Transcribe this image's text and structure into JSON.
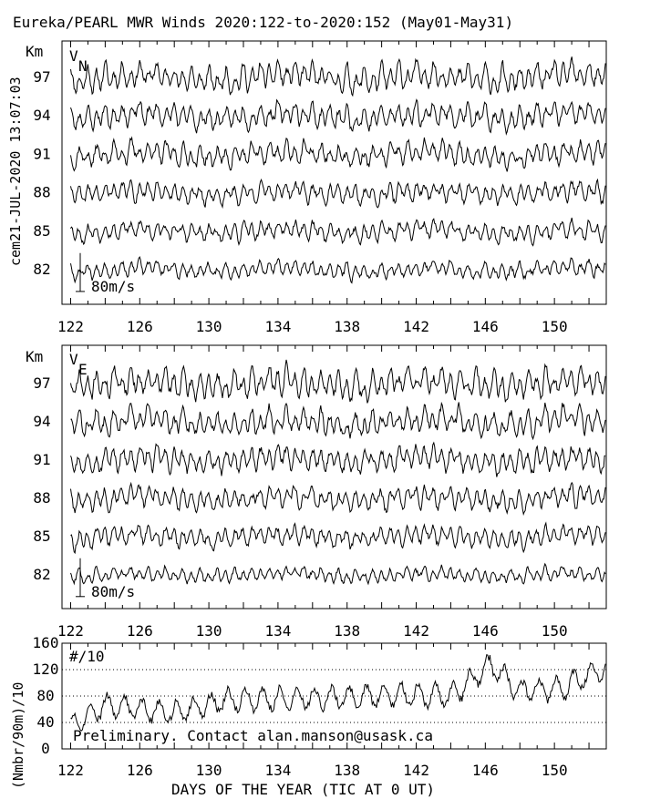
{
  "title": "Eureka/PEARL MWR Winds 2020:122-to-2020:152 (May01-May31)",
  "side_label": "cem21-JUL-2020 13:07:03",
  "footer_note": "Preliminary. Contact alan.manson@usask.ca",
  "x_axis": {
    "label": "DAYS OF THE YEAR (TIC AT 0 UT)",
    "min": 121.5,
    "max": 153.0,
    "tick_labels": [
      "122",
      "126",
      "130",
      "134",
      "138",
      "142",
      "146",
      "150"
    ]
  },
  "colors": {
    "line": "#000000",
    "background": "#ffffff",
    "grid": "#000000"
  },
  "chart_data": [
    {
      "type": "line",
      "panel": "VN",
      "label_main": "V",
      "label_sub": "N",
      "y_unit_label": "Km",
      "heights_km": [
        97,
        94,
        91,
        88,
        85,
        82
      ],
      "scale_bar_label": "80m/s",
      "scale_bar_ms": 80,
      "km_per_ms": 0.0375,
      "x_range": [
        121.5,
        153.0
      ],
      "series": [
        {
          "name": "97",
          "km": 97,
          "std_ms": 20,
          "seed": 11
        },
        {
          "name": "94",
          "km": 94,
          "std_ms": 18,
          "seed": 23
        },
        {
          "name": "91",
          "km": 91,
          "std_ms": 17,
          "seed": 37
        },
        {
          "name": "88",
          "km": 88,
          "std_ms": 15,
          "seed": 41
        },
        {
          "name": "85",
          "km": 85,
          "std_ms": 14,
          "seed": 53
        },
        {
          "name": "82",
          "km": 82,
          "std_ms": 12,
          "seed": 67
        }
      ]
    },
    {
      "type": "line",
      "panel": "VE",
      "label_main": "V",
      "label_sub": "E",
      "y_unit_label": "Km",
      "heights_km": [
        97,
        94,
        91,
        88,
        85,
        82
      ],
      "scale_bar_label": "80m/s",
      "scale_bar_ms": 80,
      "km_per_ms": 0.0375,
      "x_range": [
        121.5,
        153.0
      ],
      "series": [
        {
          "name": "97",
          "km": 97,
          "std_ms": 22,
          "seed": 71
        },
        {
          "name": "94",
          "km": 94,
          "std_ms": 20,
          "seed": 83
        },
        {
          "name": "91",
          "km": 91,
          "std_ms": 18,
          "seed": 97
        },
        {
          "name": "88",
          "km": 88,
          "std_ms": 17,
          "seed": 101
        },
        {
          "name": "85",
          "km": 85,
          "std_ms": 15,
          "seed": 113
        },
        {
          "name": "82",
          "km": 82,
          "std_ms": 11,
          "seed": 127
        }
      ]
    },
    {
      "type": "line",
      "panel": "count",
      "label": "#/10",
      "ylabel": "(Nmbr/90m)/10",
      "ylim": [
        0,
        160
      ],
      "y_tick_labels": [
        "0",
        "40",
        "80",
        "120",
        "160"
      ],
      "dotted_gridlines": [
        40,
        80,
        120
      ],
      "x_range": [
        121.5,
        153.0
      ],
      "key_points": [
        {
          "day": 122.0,
          "value": 42
        },
        {
          "day": 124.0,
          "value": 75
        },
        {
          "day": 128.0,
          "value": 62
        },
        {
          "day": 131.0,
          "value": 82
        },
        {
          "day": 134.0,
          "value": 84
        },
        {
          "day": 138.0,
          "value": 86
        },
        {
          "day": 141.0,
          "value": 90
        },
        {
          "day": 144.0,
          "value": 88
        },
        {
          "day": 146.3,
          "value": 135
        },
        {
          "day": 148.0,
          "value": 95
        },
        {
          "day": 150.5,
          "value": 100
        },
        {
          "day": 152.5,
          "value": 128
        }
      ]
    }
  ]
}
